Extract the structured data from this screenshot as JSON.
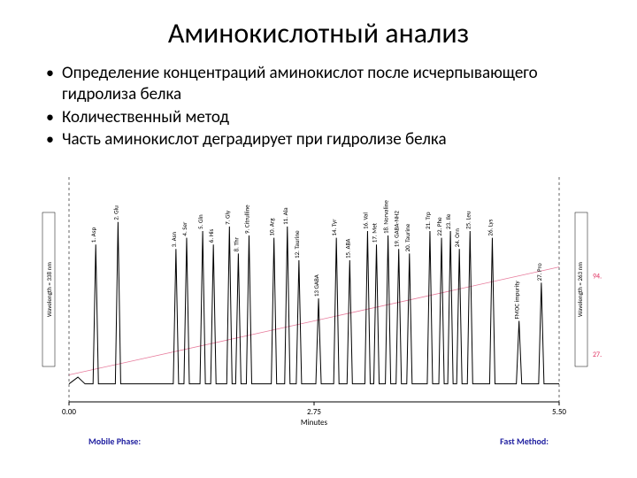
{
  "title": "Аминокислотный анализ",
  "title_fontsize": 32,
  "bullets": [
    "Определение концентраций аминокислот после исчерпывающего гидролиза белка",
    "Количественный метод",
    "Часть аминокислот деградирует при гидролизе белка"
  ],
  "bullet_fontsize": 19,
  "chromatogram": {
    "type": "line",
    "x_axis_label": "Minutes",
    "x_axis_fontsize": 9,
    "xlim": [
      0.0,
      5.5
    ],
    "xticks": [
      0.0,
      2.75,
      5.5
    ],
    "xtick_labels": [
      "0.00",
      "2.75",
      "5.50"
    ],
    "ylim": [
      0,
      100
    ],
    "baseline_y": 8,
    "background_color": "#ffffff",
    "line_width": 1,
    "line_color": "#000000",
    "axis_color": "#000000",
    "gradient_line_color": "#e77b9c",
    "gradient_start_y": 12,
    "gradient_end_y": 60,
    "dash_line_color": "#000000",
    "left_y_label": "Wavelength = 338 nm",
    "right_y_label": "Wavelength = 263 nm",
    "ylabel_fontsize": 8,
    "right_markers": [
      {
        "label": "94.8",
        "color": "#e03060",
        "y": 55
      },
      {
        "label": "27.0",
        "color": "#e03060",
        "y": 20
      }
    ],
    "peak_label_fontsize": 7,
    "peaks": [
      {
        "x": 0.3,
        "height": 62,
        "label": "1. Asp"
      },
      {
        "x": 0.55,
        "height": 72,
        "label": "2. Glu"
      },
      {
        "x": 1.2,
        "height": 60,
        "label": "3. Asn"
      },
      {
        "x": 1.32,
        "height": 65,
        "label": "4. Ser"
      },
      {
        "x": 1.5,
        "height": 68,
        "label": "5. Gln"
      },
      {
        "x": 1.62,
        "height": 62,
        "label": "6. His"
      },
      {
        "x": 1.8,
        "height": 70,
        "label": "7. Gly"
      },
      {
        "x": 1.9,
        "height": 58,
        "label": "8. Thr"
      },
      {
        "x": 2.02,
        "height": 66,
        "label": "9. Citrulline"
      },
      {
        "x": 2.3,
        "height": 65,
        "label": "10. Arg"
      },
      {
        "x": 2.45,
        "height": 70,
        "label": "11. Ala"
      },
      {
        "x": 2.58,
        "height": 55,
        "label": "12. Taurine"
      },
      {
        "x": 2.8,
        "height": 38,
        "label": "13 GABA"
      },
      {
        "x": 3.0,
        "height": 65,
        "label": "14. Tyr"
      },
      {
        "x": 3.15,
        "height": 55,
        "label": "15. ABA"
      },
      {
        "x": 3.35,
        "height": 68,
        "label": "16. Val"
      },
      {
        "x": 3.45,
        "height": 62,
        "label": "17. Met"
      },
      {
        "x": 3.58,
        "height": 66,
        "label": "18. Norvaline"
      },
      {
        "x": 3.7,
        "height": 60,
        "label": "19. GABA-NH2"
      },
      {
        "x": 3.82,
        "height": 58,
        "label": "20. Taurine"
      },
      {
        "x": 4.05,
        "height": 68,
        "label": "21. Trp"
      },
      {
        "x": 4.18,
        "height": 65,
        "label": "22. Phe"
      },
      {
        "x": 4.28,
        "height": 68,
        "label": "23. Ile"
      },
      {
        "x": 4.38,
        "height": 60,
        "label": "24. Orn"
      },
      {
        "x": 4.5,
        "height": 68,
        "label": "25. Leu"
      },
      {
        "x": 4.75,
        "height": 65,
        "label": "26. Lys"
      },
      {
        "x": 5.05,
        "height": 28,
        "label": "FMOC impurity"
      },
      {
        "x": 5.3,
        "height": 45,
        "label": "27. Pro"
      }
    ]
  },
  "footer": {
    "left_label": "Mobile Phase:",
    "right_label": "Fast Method:",
    "color": "#2020a0"
  }
}
